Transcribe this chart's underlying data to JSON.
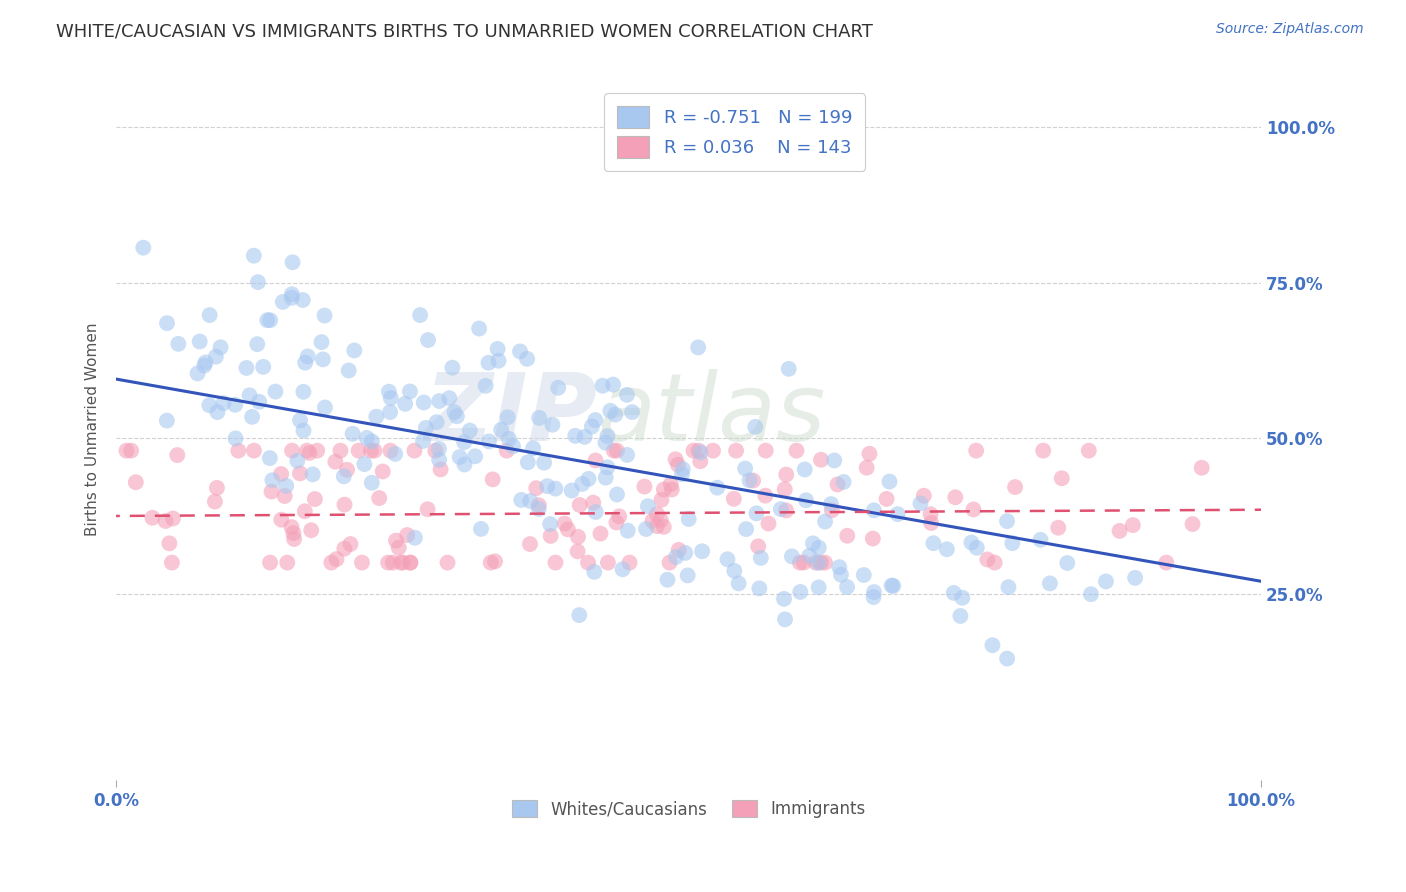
{
  "title": "WHITE/CAUCASIAN VS IMMIGRANTS BIRTHS TO UNMARRIED WOMEN CORRELATION CHART",
  "source": "Source: ZipAtlas.com",
  "ylabel": "Births to Unmarried Women",
  "ytick_labels_right": [
    "25.0%",
    "50.0%",
    "75.0%",
    "100.0%"
  ],
  "xtick_labels": [
    "0.0%",
    "100.0%"
  ],
  "xlim": [
    0.0,
    1.0
  ],
  "ylim": [
    -0.05,
    1.08
  ],
  "blue_color": "#A8C8F0",
  "pink_color": "#F4A0B8",
  "blue_line_color": "#3355BB",
  "pink_line_color": "#E05070",
  "blue_R": -0.751,
  "blue_N": 199,
  "pink_R": 0.036,
  "pink_N": 143,
  "legend_label_blue": "Whites/Caucasians",
  "legend_label_pink": "Immigrants",
  "watermark_zip": "ZIP",
  "watermark_atlas": "atlas",
  "title_fontsize": 13,
  "source_fontsize": 10,
  "label_fontsize": 11,
  "tick_fontsize": 12,
  "background_color": "#FFFFFF",
  "grid_color": "#CCCCCC",
  "grid_style": "--",
  "blue_scatter_alpha": 0.6,
  "pink_scatter_alpha": 0.6,
  "scatter_size": 130,
  "blue_line_start_y": 0.595,
  "blue_line_end_y": 0.27,
  "pink_line_start_y": 0.375,
  "pink_line_end_y": 0.385
}
